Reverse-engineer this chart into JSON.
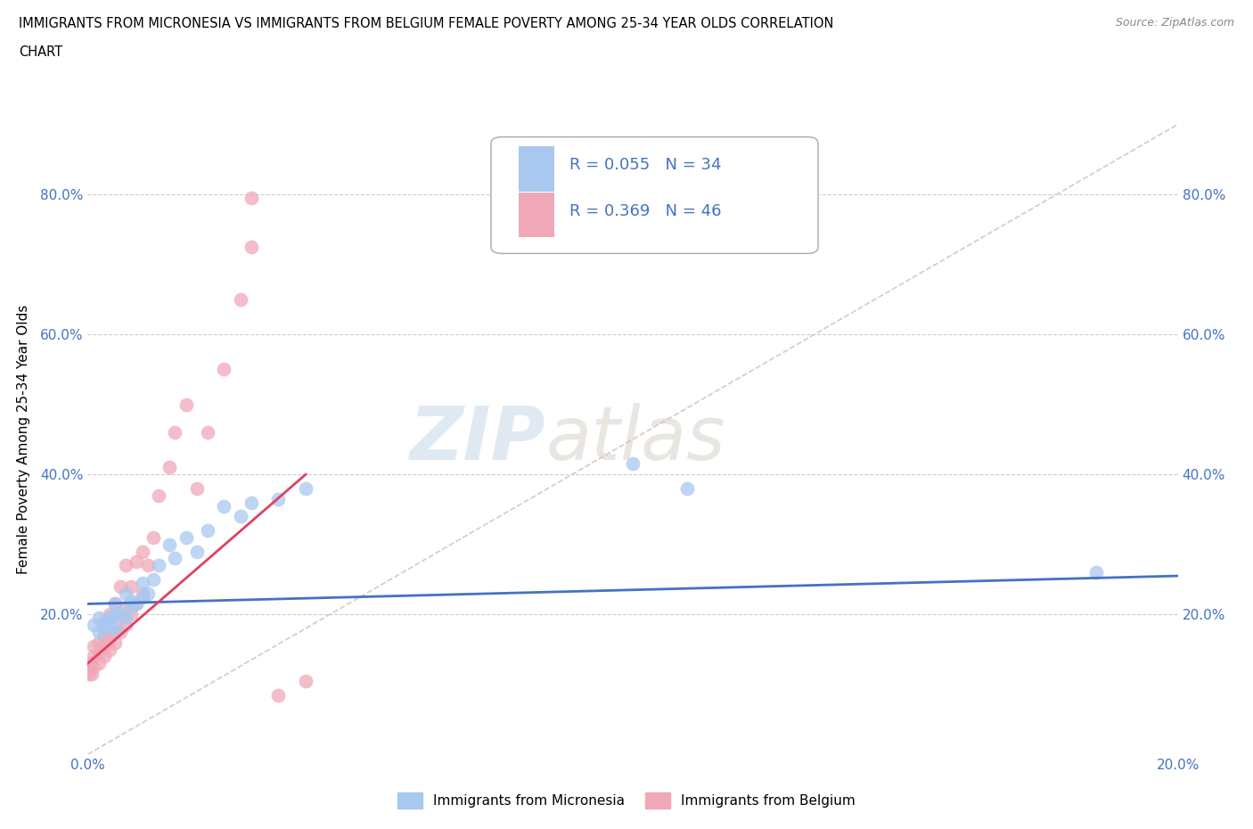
{
  "title_line1": "IMMIGRANTS FROM MICRONESIA VS IMMIGRANTS FROM BELGIUM FEMALE POVERTY AMONG 25-34 YEAR OLDS CORRELATION",
  "title_line2": "CHART",
  "source": "Source: ZipAtlas.com",
  "ylabel": "Female Poverty Among 25-34 Year Olds",
  "xlim": [
    0.0,
    0.2
  ],
  "ylim": [
    0.0,
    0.9
  ],
  "xticks": [
    0.0,
    0.05,
    0.1,
    0.15,
    0.2
  ],
  "xtick_labels": [
    "0.0%",
    "",
    "",
    "",
    "20.0%"
  ],
  "ytick_labels": [
    "",
    "20.0%",
    "40.0%",
    "60.0%",
    "80.0%"
  ],
  "ytick_positions": [
    0.0,
    0.2,
    0.4,
    0.6,
    0.8
  ],
  "watermark_zip": "ZIP",
  "watermark_atlas": "atlas",
  "blue_R": "R = 0.055",
  "blue_N": "N = 34",
  "pink_R": "R = 0.369",
  "pink_N": "N = 46",
  "blue_color": "#a8c8f0",
  "pink_color": "#f0a8b8",
  "blue_line_color": "#4472c4",
  "pink_line_color": "#e04060",
  "diagonal_color": "#d4b8b8",
  "legend_label_blue": "Immigrants from Micronesia",
  "legend_label_pink": "Immigrants from Belgium",
  "blue_scatter_x": [
    0.001,
    0.002,
    0.002,
    0.003,
    0.003,
    0.004,
    0.004,
    0.005,
    0.005,
    0.005,
    0.006,
    0.007,
    0.007,
    0.008,
    0.008,
    0.009,
    0.01,
    0.01,
    0.011,
    0.012,
    0.013,
    0.015,
    0.016,
    0.018,
    0.02,
    0.022,
    0.025,
    0.028,
    0.03,
    0.035,
    0.04,
    0.1,
    0.11,
    0.185
  ],
  "blue_scatter_y": [
    0.185,
    0.175,
    0.195,
    0.18,
    0.19,
    0.185,
    0.195,
    0.18,
    0.2,
    0.215,
    0.2,
    0.195,
    0.23,
    0.21,
    0.22,
    0.215,
    0.225,
    0.245,
    0.23,
    0.25,
    0.27,
    0.3,
    0.28,
    0.31,
    0.29,
    0.32,
    0.355,
    0.34,
    0.36,
    0.365,
    0.38,
    0.415,
    0.38,
    0.26
  ],
  "pink_scatter_x": [
    0.0002,
    0.0003,
    0.0005,
    0.0007,
    0.001,
    0.001,
    0.001,
    0.002,
    0.002,
    0.002,
    0.003,
    0.003,
    0.003,
    0.003,
    0.004,
    0.004,
    0.004,
    0.005,
    0.005,
    0.005,
    0.006,
    0.006,
    0.006,
    0.007,
    0.007,
    0.007,
    0.008,
    0.008,
    0.009,
    0.009,
    0.01,
    0.01,
    0.011,
    0.012,
    0.013,
    0.015,
    0.016,
    0.018,
    0.02,
    0.022,
    0.025,
    0.028,
    0.03,
    0.03,
    0.035,
    0.04
  ],
  "pink_scatter_y": [
    0.115,
    0.12,
    0.13,
    0.115,
    0.125,
    0.14,
    0.155,
    0.13,
    0.145,
    0.16,
    0.14,
    0.155,
    0.17,
    0.185,
    0.15,
    0.165,
    0.2,
    0.16,
    0.175,
    0.215,
    0.175,
    0.195,
    0.24,
    0.185,
    0.21,
    0.27,
    0.2,
    0.24,
    0.215,
    0.275,
    0.23,
    0.29,
    0.27,
    0.31,
    0.37,
    0.41,
    0.46,
    0.5,
    0.38,
    0.46,
    0.55,
    0.65,
    0.795,
    0.725,
    0.085,
    0.105
  ],
  "blue_trend_x0": 0.0,
  "blue_trend_x1": 0.2,
  "blue_trend_y0": 0.215,
  "blue_trend_y1": 0.255,
  "pink_trend_x0": 0.0,
  "pink_trend_x1": 0.04,
  "pink_trend_y0": 0.13,
  "pink_trend_y1": 0.4
}
